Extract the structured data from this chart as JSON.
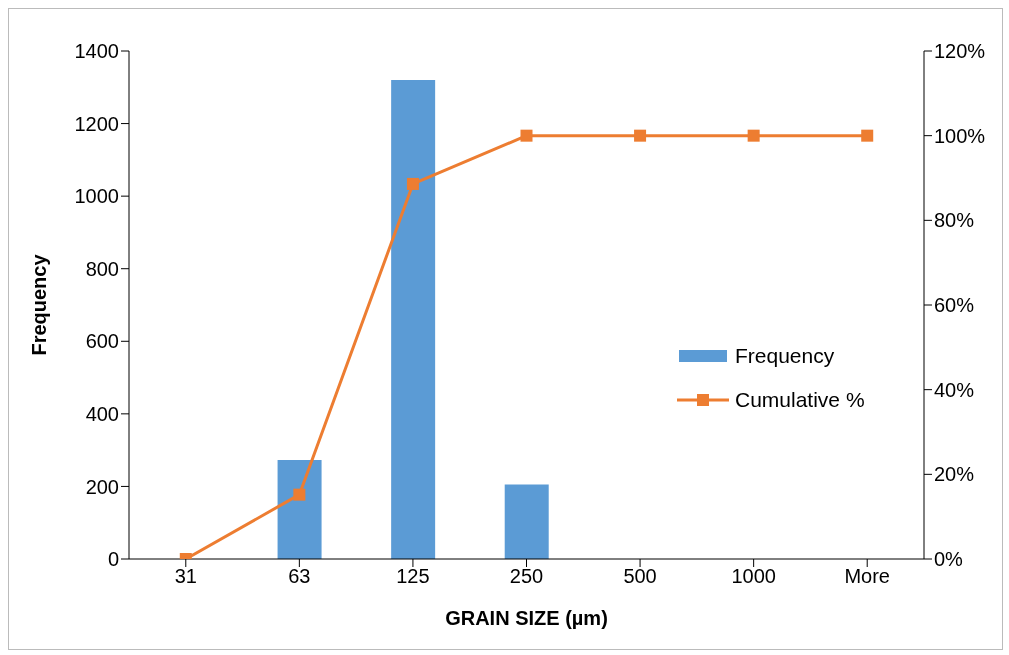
{
  "chart_data": {
    "type": "bar",
    "xlabel": "GRAIN SIZE (µm)",
    "ylabel": "Frequency",
    "categories": [
      "31",
      "63",
      "125",
      "250",
      "500",
      "1000",
      "More"
    ],
    "series": [
      {
        "name": "Frequency",
        "color": "#5b9bd5",
        "values": [
          0,
          273,
          1320,
          205,
          0,
          0,
          0
        ]
      },
      {
        "name": "Cumulative %",
        "type": "line",
        "axis": "y2",
        "color": "#ed7d31",
        "marker": "square",
        "values": [
          0,
          15.2,
          88.6,
          100,
          100,
          100,
          100
        ]
      }
    ],
    "ylim": [
      0,
      1400
    ],
    "yticks": [
      0,
      200,
      400,
      600,
      800,
      1000,
      1200,
      1400
    ],
    "y2lim": [
      0,
      120
    ],
    "y2ticks": [
      {
        "value": 0,
        "label": "0%"
      },
      {
        "value": 20,
        "label": "20%"
      },
      {
        "value": 40,
        "label": "40%"
      },
      {
        "value": 60,
        "label": "60%"
      },
      {
        "value": 80,
        "label": "80%"
      },
      {
        "value": 100,
        "label": "100%"
      },
      {
        "value": 120,
        "label": "120%"
      }
    ],
    "grid": false,
    "legend": "right"
  }
}
